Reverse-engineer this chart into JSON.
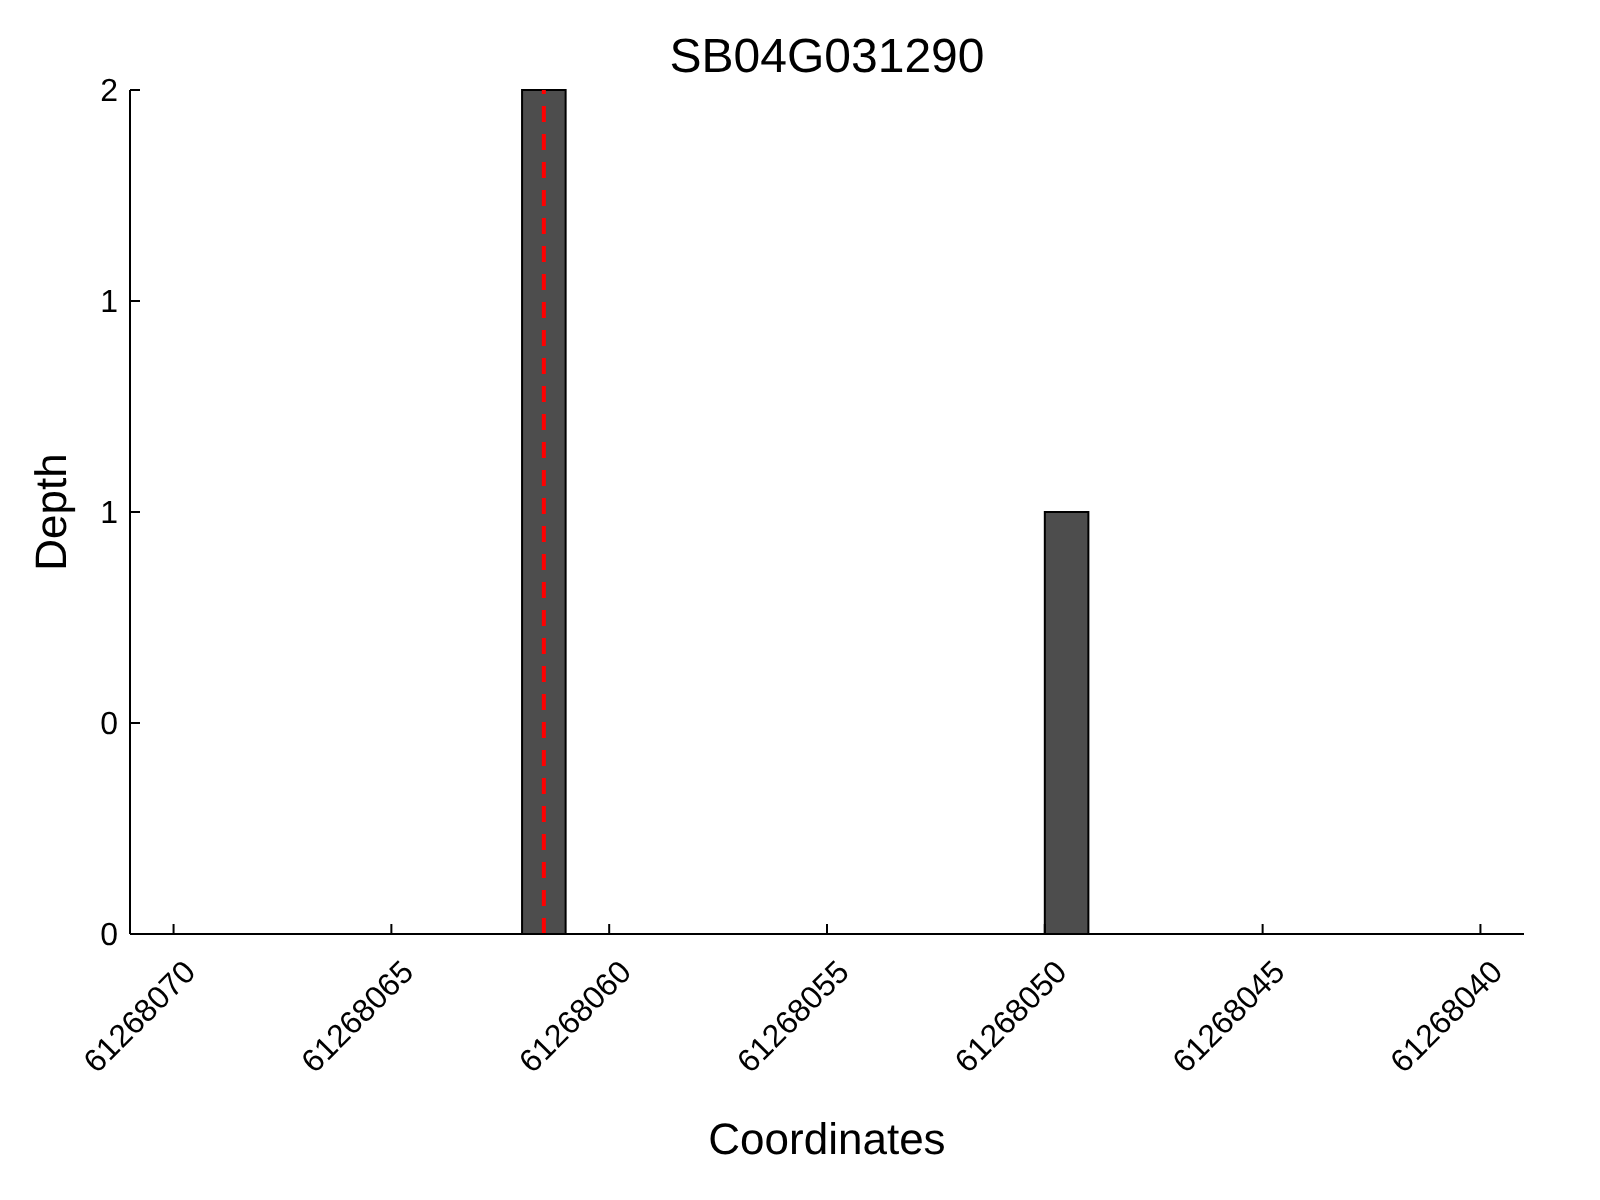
{
  "chart_data": {
    "type": "bar",
    "title": "SB04G031290",
    "xlabel": "Coordinates",
    "ylabel": "Depth",
    "x": [
      61268061.5,
      61268049.5
    ],
    "values": [
      2,
      1
    ],
    "color": "#4d4d4d",
    "xlim": [
      61268071,
      61268039
    ],
    "xticks": [
      61268070,
      61268065,
      61268060,
      61268055,
      61268050,
      61268045,
      61268040
    ],
    "ylim": [
      0,
      2
    ],
    "yticks": [
      {
        "value": 0,
        "label": "0"
      },
      {
        "value": 0.5,
        "label": "0"
      },
      {
        "value": 1,
        "label": "1"
      },
      {
        "value": 1.5,
        "label": "1"
      },
      {
        "value": 2,
        "label": "2"
      }
    ],
    "ref_lines": [
      {
        "axis": "x",
        "value": 61268061.5,
        "color": "#ff0000",
        "line_style": "dashed"
      }
    ],
    "grid": false
  }
}
